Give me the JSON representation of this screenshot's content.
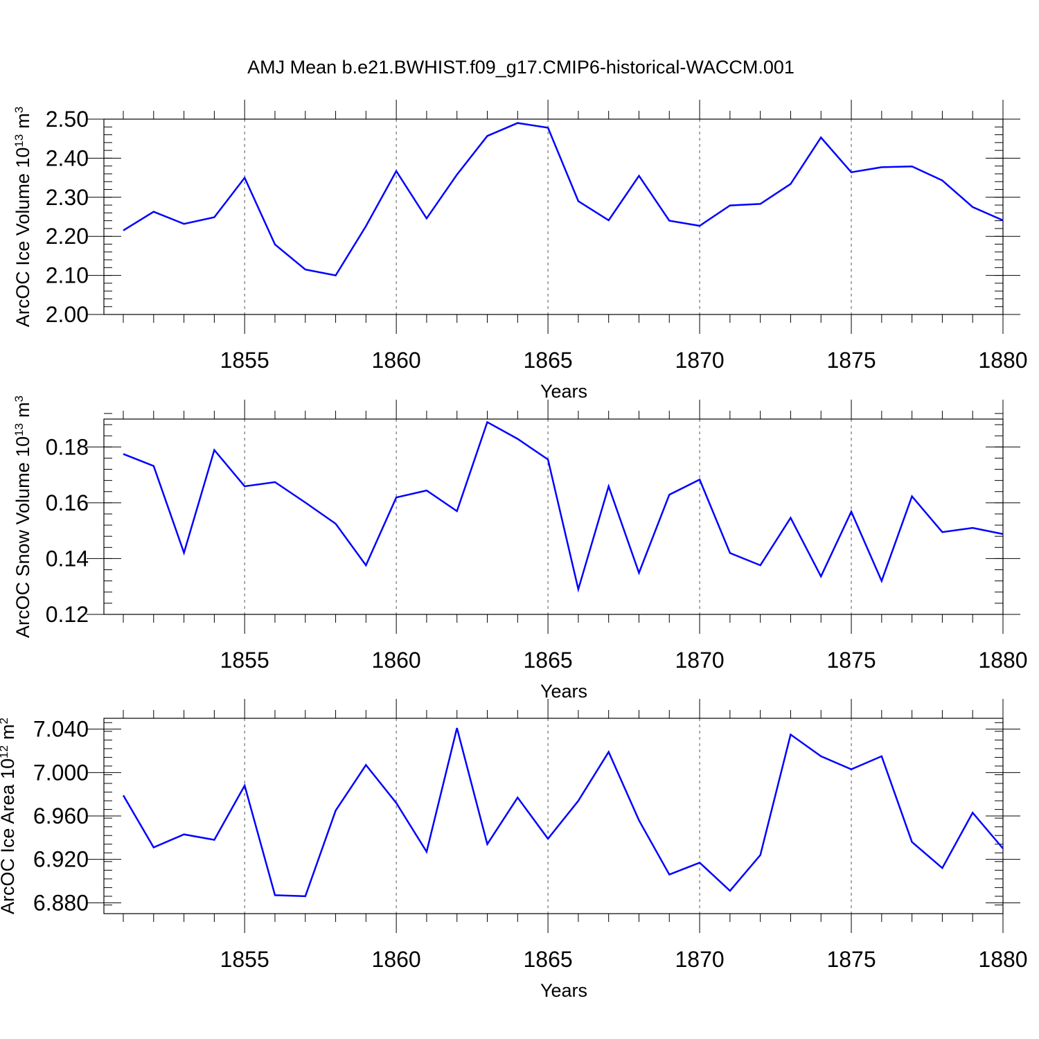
{
  "title": "AMJ Mean b.e21.BWHIST.f09_g17.CMIP6-historical-WACCM.001",
  "line_color": "#0000ff",
  "chart_data": [
    {
      "type": "line",
      "ylabel": "ArcOC Ice Volume 10",
      "ylabel_sup": "13",
      "ylabel_unit": "m",
      "ylabel_unit_sup": "3",
      "xlabel": "Years",
      "xlim": [
        1851,
        1880
      ],
      "ylim": [
        2.0,
        2.5
      ],
      "x_ticks": [
        1855,
        1860,
        1865,
        1870,
        1875,
        1880
      ],
      "x_tick_labels": [
        "1855",
        "1860",
        "1865",
        "1870",
        "1875",
        "1880"
      ],
      "y_ticks": [
        2.0,
        2.1,
        2.2,
        2.3,
        2.4,
        2.5
      ],
      "y_tick_labels": [
        "2.00",
        "2.10",
        "2.20",
        "2.30",
        "2.40",
        "2.50"
      ],
      "y_minor_step": 0.02,
      "vertical_gridlines": true,
      "x": [
        1851,
        1852,
        1853,
        1854,
        1855,
        1856,
        1857,
        1858,
        1859,
        1860,
        1861,
        1862,
        1863,
        1864,
        1865,
        1866,
        1867,
        1868,
        1869,
        1870,
        1871,
        1872,
        1873,
        1874,
        1875,
        1876,
        1877,
        1878,
        1879,
        1880
      ],
      "values": [
        2.215,
        2.263,
        2.232,
        2.249,
        2.35,
        2.179,
        2.115,
        2.1,
        2.226,
        2.367,
        2.246,
        2.358,
        2.457,
        2.49,
        2.478,
        2.29,
        2.241,
        2.355,
        2.24,
        2.227,
        2.279,
        2.283,
        2.334,
        2.453,
        2.364,
        2.377,
        2.379,
        2.343,
        2.275,
        2.241
      ]
    },
    {
      "type": "line",
      "ylabel": "ArcOC Snow Volume 10",
      "ylabel_sup": "13",
      "ylabel_unit": "m",
      "ylabel_unit_sup": "3",
      "xlabel": "Years",
      "xlim": [
        1851,
        1880
      ],
      "ylim": [
        0.12,
        0.19
      ],
      "x_ticks": [
        1855,
        1860,
        1865,
        1870,
        1875,
        1880
      ],
      "x_tick_labels": [
        "1855",
        "1860",
        "1865",
        "1870",
        "1875",
        "1880"
      ],
      "y_ticks": [
        0.12,
        0.14,
        0.16,
        0.18
      ],
      "y_tick_labels": [
        "0.12",
        "0.14",
        "0.16",
        "0.18"
      ],
      "y_minor_step": 0.004,
      "vertical_gridlines": true,
      "x": [
        1851,
        1852,
        1853,
        1854,
        1855,
        1856,
        1857,
        1858,
        1859,
        1860,
        1861,
        1862,
        1863,
        1864,
        1865,
        1866,
        1867,
        1868,
        1869,
        1870,
        1871,
        1872,
        1873,
        1874,
        1875,
        1876,
        1877,
        1878,
        1879,
        1880
      ],
      "values": [
        0.1775,
        0.1732,
        0.1421,
        0.1789,
        0.1659,
        0.1674,
        0.1601,
        0.1525,
        0.1376,
        0.1619,
        0.1644,
        0.157,
        0.1889,
        0.1829,
        0.1755,
        0.129,
        0.1659,
        0.1349,
        0.1629,
        0.1683,
        0.142,
        0.1376,
        0.1546,
        0.1336,
        0.1568,
        0.132,
        0.1623,
        0.1495,
        0.151,
        0.1488
      ]
    },
    {
      "type": "line",
      "ylabel": "ArcOC Ice Area 10",
      "ylabel_sup": "12",
      "ylabel_unit": "m",
      "ylabel_unit_sup": "2",
      "xlabel": "Years",
      "xlim": [
        1851,
        1880
      ],
      "ylim": [
        6.87,
        7.05
      ],
      "x_ticks": [
        1855,
        1860,
        1865,
        1870,
        1875,
        1880
      ],
      "x_tick_labels": [
        "1855",
        "1860",
        "1865",
        "1870",
        "1875",
        "1880"
      ],
      "y_ticks": [
        6.88,
        6.92,
        6.96,
        7.0,
        7.04
      ],
      "y_tick_labels": [
        "6.880",
        "6.920",
        "6.960",
        "7.000",
        "7.040"
      ],
      "y_minor_step": 0.008,
      "vertical_gridlines": true,
      "x": [
        1851,
        1852,
        1853,
        1854,
        1855,
        1856,
        1857,
        1858,
        1859,
        1860,
        1861,
        1862,
        1863,
        1864,
        1865,
        1866,
        1867,
        1868,
        1869,
        1870,
        1871,
        1872,
        1873,
        1874,
        1875,
        1876,
        1877,
        1878,
        1879,
        1880
      ],
      "values": [
        6.979,
        6.931,
        6.943,
        6.938,
        6.988,
        6.887,
        6.886,
        6.965,
        7.007,
        6.972,
        6.927,
        7.041,
        6.934,
        6.977,
        6.939,
        6.974,
        7.019,
        6.956,
        6.906,
        6.917,
        6.891,
        6.924,
        7.035,
        7.015,
        7.003,
        7.015,
        6.936,
        6.912,
        6.963,
        6.93
      ]
    }
  ]
}
